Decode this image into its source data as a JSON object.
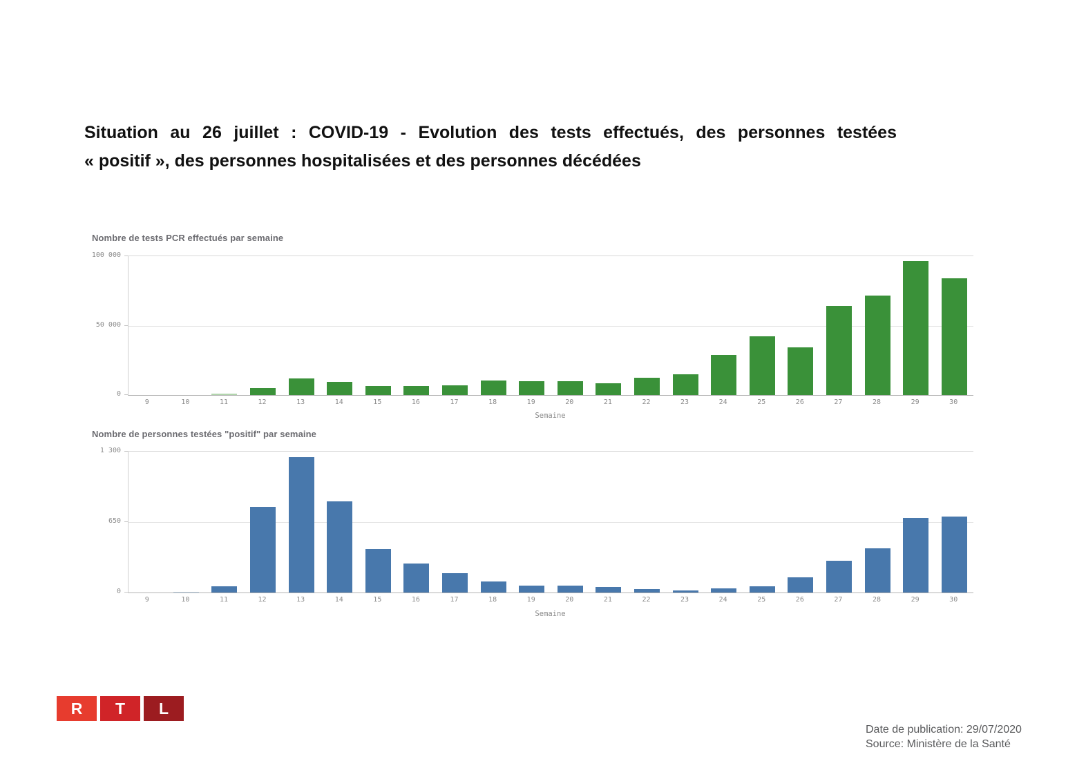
{
  "title": {
    "line1": "Situation au 26 juillet : COVID-19 - Evolution des tests effectués, des personnes testées",
    "line2": "« positif », des personnes hospitalisées et des personnes décédées"
  },
  "chart_data": [
    {
      "type": "bar",
      "title": "Nombre de tests PCR effectués par semaine",
      "xlabel": "Semaine",
      "ylabel": "",
      "categories": [
        9,
        10,
        11,
        12,
        13,
        14,
        15,
        16,
        17,
        18,
        19,
        20,
        21,
        22,
        23,
        24,
        25,
        26,
        27,
        28,
        29,
        30
      ],
      "values": [
        0,
        0,
        1200,
        5000,
        12000,
        9600,
        6600,
        6600,
        7100,
        10300,
        9800,
        9800,
        8300,
        12300,
        15000,
        29000,
        42500,
        34500,
        64000,
        71500,
        96500,
        84000
      ],
      "ylim": [
        0,
        100000
      ],
      "yticks": [
        {
          "label": "100 000",
          "value": 100000
        },
        {
          "label": "50 000",
          "value": 50000
        },
        {
          "label": "0",
          "value": 0
        }
      ],
      "bar_color": "#3a9139",
      "light_bars": [
        {
          "index": 2,
          "color": "#b2d6ad"
        }
      ],
      "grid": true,
      "legend": "none"
    },
    {
      "type": "bar",
      "title": "Nombre de personnes testées \"positif\" par semaine",
      "xlabel": "Semaine",
      "ylabel": "",
      "categories": [
        9,
        10,
        11,
        12,
        13,
        14,
        15,
        16,
        17,
        18,
        19,
        20,
        21,
        22,
        23,
        24,
        25,
        26,
        27,
        28,
        29,
        30
      ],
      "values": [
        0,
        5,
        60,
        790,
        1250,
        840,
        400,
        265,
        180,
        100,
        65,
        65,
        50,
        30,
        20,
        40,
        55,
        140,
        295,
        410,
        690,
        700
      ],
      "ylim": [
        0,
        1300
      ],
      "yticks": [
        {
          "label": "1 300",
          "value": 1300
        },
        {
          "label": "650",
          "value": 650
        },
        {
          "label": "0",
          "value": 0
        }
      ],
      "bar_color": "#4878ac",
      "light_bars": [
        {
          "index": 1,
          "color": "#c0d4e6"
        }
      ],
      "grid": true,
      "legend": "none"
    }
  ],
  "footer": {
    "logo": {
      "letters": [
        "R",
        "T",
        "L"
      ],
      "colors": [
        "#e73c2e",
        "#d02428",
        "#9c1c20"
      ]
    },
    "publication": "Date de publication: 29/07/2020",
    "source": "Source: Ministère de la Santé"
  }
}
